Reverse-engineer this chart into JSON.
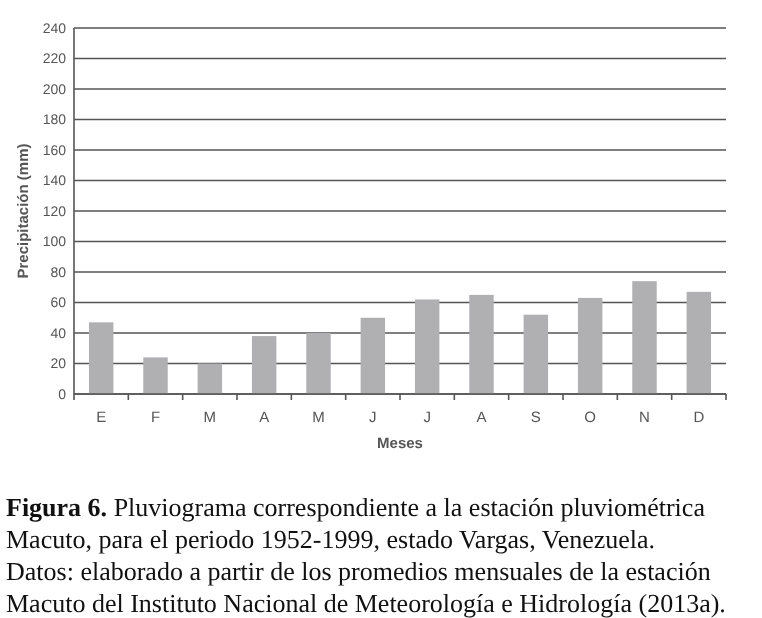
{
  "chart_data": {
    "type": "bar",
    "ylabel": "Precipitación (mm)",
    "xlabel": "Meses",
    "title": "Figura 6.",
    "categories": [
      "E",
      "F",
      "M",
      "A",
      "M",
      "J",
      "J",
      "A",
      "S",
      "O",
      "N",
      "D"
    ],
    "values": [
      47,
      24,
      20,
      38,
      40,
      50,
      62,
      65,
      52,
      63,
      74,
      67
    ],
    "color": "#b0b0b3",
    "ylim": [
      0,
      240
    ],
    "yticks": [
      0,
      20,
      40,
      60,
      80,
      100,
      120,
      140,
      160,
      180,
      200,
      220,
      240
    ],
    "grid": "y",
    "annotations": [
      "Pluviograma correspondiente a la estación pluviométrica Macuto, para el periodo 1952-1999, estado Vargas, Venezuela.",
      "Datos: elaborado a partir de los promedios mensuales de la estación Macuto del Instituto Nacional de Meteorología e Hidrología (2013a)."
    ]
  }
}
